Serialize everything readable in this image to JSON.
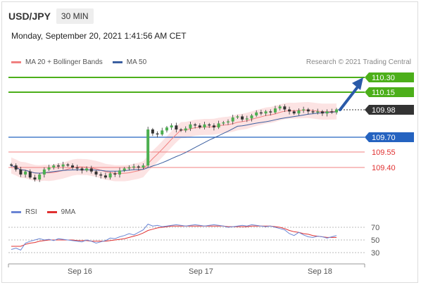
{
  "header": {
    "symbol": "USD/JPY",
    "timeframe": "30 MIN"
  },
  "datetime": "Monday, September 20, 2021 1:41:56 AM CET",
  "legend": {
    "items": [
      {
        "label": "MA 20 + Bollinger Bands",
        "color": "#f08080"
      },
      {
        "label": "MA 50",
        "color": "#3b5fa0"
      }
    ],
    "credit": "Research © 2021 Trading Central"
  },
  "levels": {
    "res2": {
      "value": "110.30",
      "color": "#4caf1a"
    },
    "res1": {
      "value": "110.15",
      "color": "#4caf1a"
    },
    "last": {
      "value": "109.98",
      "color": "#333333"
    },
    "pivot": {
      "value": "109.70",
      "color": "#2563c0"
    },
    "sup1": {
      "value": "109.55",
      "color": "#e03030"
    },
    "sup2": {
      "value": "109.40",
      "color": "#e03030"
    }
  },
  "rsi": {
    "legend": [
      {
        "label": "RSI",
        "color": "#6a85d4"
      },
      {
        "label": "9MA",
        "color": "#e03030"
      }
    ],
    "ticks": [
      "70",
      "50",
      "30"
    ]
  },
  "xaxis": {
    "labels": [
      "Sep 16",
      "Sep 17",
      "Sep 18"
    ]
  },
  "chart_data": {
    "type": "line",
    "price_levels": [
      110.3,
      110.15,
      109.98,
      109.7,
      109.55,
      109.4
    ],
    "close": [
      109.42,
      109.38,
      109.33,
      109.36,
      109.3,
      109.28,
      109.33,
      109.38,
      109.4,
      109.42,
      109.41,
      109.43,
      109.42,
      109.4,
      109.39,
      109.37,
      109.39,
      109.36,
      109.33,
      109.32,
      109.3,
      109.34,
      109.33,
      109.37,
      109.39,
      109.4,
      109.41,
      109.4,
      109.42,
      109.78,
      109.74,
      109.73,
      109.77,
      109.8,
      109.82,
      109.78,
      109.77,
      109.79,
      109.83,
      109.82,
      109.8,
      109.83,
      109.82,
      109.8,
      109.84,
      109.85,
      109.86,
      109.9,
      109.91,
      109.88,
      109.89,
      109.92,
      109.95,
      109.94,
      109.96,
      109.95,
      109.99,
      110.01,
      109.98,
      109.96,
      109.94,
      109.97,
      109.98,
      109.96,
      109.95,
      109.96,
      109.94,
      109.96,
      109.95,
      109.98
    ],
    "rsi": [
      35,
      37,
      34,
      45,
      48,
      50,
      52,
      50,
      51,
      49,
      52,
      51,
      50,
      49,
      48,
      47,
      50,
      48,
      45,
      47,
      49,
      53,
      52,
      55,
      57,
      60,
      58,
      62,
      66,
      75,
      72,
      73,
      71,
      72,
      73,
      74,
      73,
      72,
      73,
      74,
      73,
      72,
      73,
      74,
      73,
      72,
      70,
      71,
      72,
      73,
      72,
      74,
      73,
      72,
      71,
      72,
      70,
      68,
      66,
      60,
      57,
      62,
      58,
      55,
      54,
      56,
      55,
      53,
      55,
      57
    ],
    "rsi_ma": [
      40,
      40,
      40,
      43,
      45,
      46,
      48,
      49,
      50,
      50,
      50,
      50,
      50,
      50,
      49,
      49,
      49,
      48,
      48,
      48,
      48,
      49,
      50,
      51,
      52,
      54,
      56,
      58,
      61,
      65,
      67,
      69,
      70,
      71,
      72,
      72,
      72,
      72,
      72,
      72,
      72,
      72,
      72,
      72,
      72,
      72,
      71,
      71,
      71,
      71,
      71,
      72,
      72,
      72,
      72,
      72,
      71,
      70,
      68,
      65,
      63,
      62,
      60,
      59,
      57,
      56,
      55,
      54,
      54,
      54
    ],
    "rsi_ylim": [
      20,
      80
    ]
  }
}
